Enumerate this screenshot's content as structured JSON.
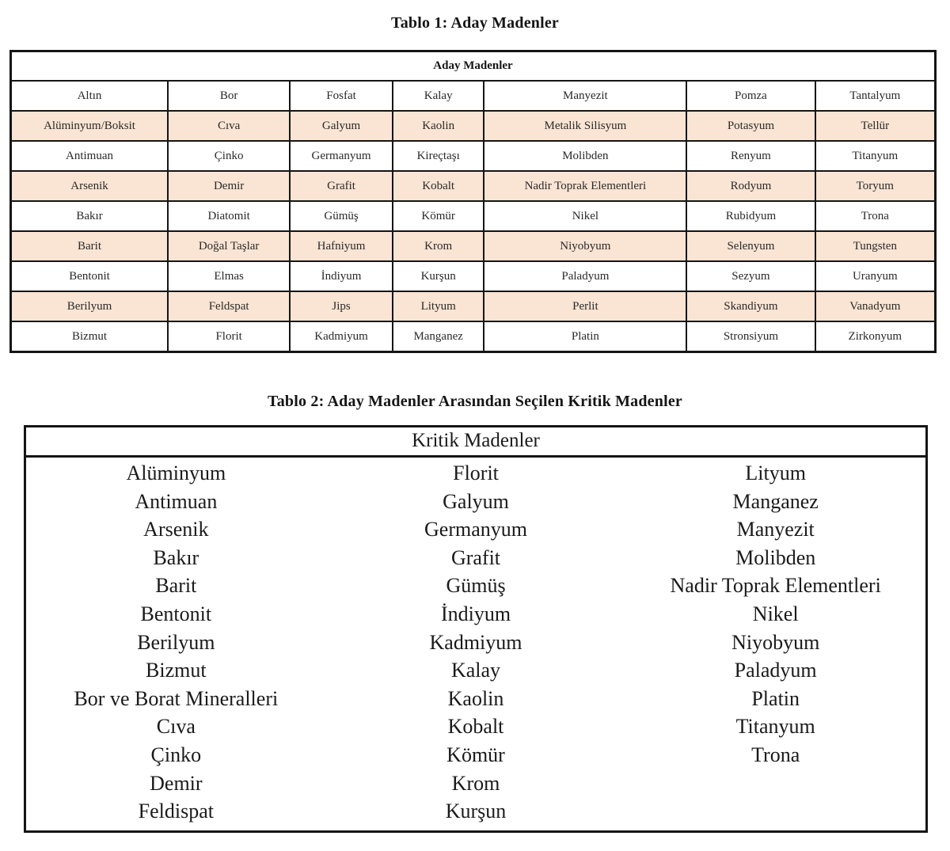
{
  "page": {
    "table1_title": "Tablo 1: Aday Madenler",
    "table2_title": "Tablo 2: Aday Madenler Arasından Seçilen Kritik Madenler"
  },
  "table1": {
    "header": "Aday Madenler",
    "shade_color": "#fae4d3",
    "rows": [
      {
        "shaded": false,
        "cells": [
          "Altın",
          "Bor",
          "Fosfat",
          "Kalay",
          "Manyezit",
          "Pomza",
          "Tantalyum"
        ]
      },
      {
        "shaded": true,
        "cells": [
          "Alüminyum/Boksit",
          "Cıva",
          "Galyum",
          "Kaolin",
          "Metalik Silisyum",
          "Potasyum",
          "Tellür"
        ]
      },
      {
        "shaded": false,
        "cells": [
          "Antimuan",
          "Çinko",
          "Germanyum",
          "Kireçtaşı",
          "Molibden",
          "Renyum",
          "Titanyum"
        ]
      },
      {
        "shaded": true,
        "cells": [
          "Arsenik",
          "Demir",
          "Grafit",
          "Kobalt",
          "Nadir Toprak Elementleri",
          "Rodyum",
          "Toryum"
        ]
      },
      {
        "shaded": false,
        "cells": [
          "Bakır",
          "Diatomit",
          "Gümüş",
          "Kömür",
          "Nikel",
          "Rubidyum",
          "Trona"
        ]
      },
      {
        "shaded": true,
        "cells": [
          "Barit",
          "Doğal Taşlar",
          "Hafniyum",
          "Krom",
          "Niyobyum",
          "Selenyum",
          "Tungsten"
        ]
      },
      {
        "shaded": false,
        "cells": [
          "Bentonit",
          "Elmas",
          "İndiyum",
          "Kurşun",
          "Paladyum",
          "Sezyum",
          "Uranyum"
        ]
      },
      {
        "shaded": true,
        "cells": [
          "Berilyum",
          "Feldspat",
          "Jips",
          "Lityum",
          "Perlit",
          "Skandiyum",
          "Vanadyum"
        ]
      },
      {
        "shaded": false,
        "cells": [
          "Bizmut",
          "Florit",
          "Kadmiyum",
          "Manganez",
          "Platin",
          "Stronsiyum",
          "Zirkonyum"
        ]
      }
    ]
  },
  "table2": {
    "header": "Kritik Madenler",
    "columns": [
      [
        "Alüminyum",
        "Antimuan",
        "Arsenik",
        "Bakır",
        "Barit",
        "Bentonit",
        "Berilyum",
        "Bizmut",
        "Bor ve Borat Mineralleri",
        "Cıva",
        "Çinko",
        "Demir",
        "Feldispat"
      ],
      [
        "Florit",
        "Galyum",
        "Germanyum",
        "Grafit",
        "Gümüş",
        "İndiyum",
        "Kadmiyum",
        "Kalay",
        "Kaolin",
        "Kobalt",
        "Kömür",
        "Krom",
        "Kurşun"
      ],
      [
        "Lityum",
        "Manganez",
        "Manyezit",
        "Molibden",
        "Nadir Toprak Elementleri",
        "Nikel",
        "Niyobyum",
        "Paladyum",
        "Platin",
        "Titanyum",
        "Trona"
      ]
    ]
  }
}
